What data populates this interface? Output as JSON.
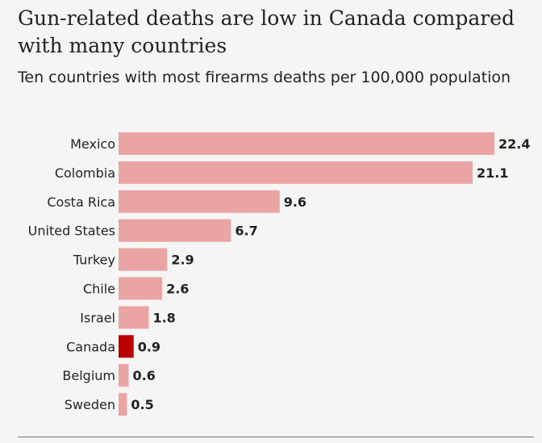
{
  "chart_data": {
    "type": "bar",
    "orientation": "horizontal",
    "title": "Gun-related deaths are low in Canada compared with many countries",
    "subtitle": "Ten countries with most firearms deaths per 100,000 population",
    "categories": [
      "Mexico",
      "Colombia",
      "Costa Rica",
      "United States",
      "Turkey",
      "Chile",
      "Israel",
      "Canada",
      "Belgium",
      "Sweden"
    ],
    "values": [
      22.4,
      21.1,
      9.6,
      6.7,
      2.9,
      2.6,
      1.8,
      0.9,
      0.6,
      0.5
    ],
    "value_labels": [
      "22.4",
      "21.1",
      "9.6",
      "6.7",
      "2.9",
      "2.6",
      "1.8",
      "0.9",
      "0.6",
      "0.5"
    ],
    "highlight": "Canada",
    "colors": {
      "default": "#eaa4a4",
      "highlight": "#bb0000"
    },
    "xlim": [
      0,
      22.4
    ],
    "xlabel": "",
    "ylabel": "",
    "grid": false
  }
}
